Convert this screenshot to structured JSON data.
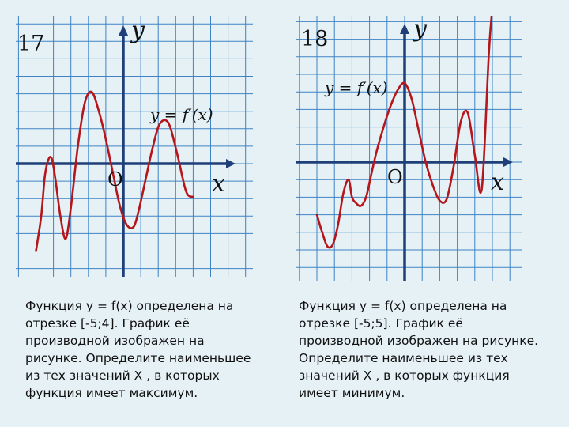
{
  "problems": [
    {
      "number": "17",
      "y_label": "y",
      "x_label": "x",
      "origin_label": "O",
      "function_label": "y = f′(x)",
      "text": "Функция y = f(x) определена на отрезке [-5;4]. График её производной изображен на рисунке. Определите наименьшее из тех значений X , в которых функция имеет максимум.",
      "curve_color": "#b4161b",
      "chart_data": {
        "type": "line",
        "series": [
          {
            "name": "y = f′(x)",
            "x": [
              -5.0,
              -4.7,
              -4.5,
              -4.3,
              -4.1,
              -3.9,
              -3.6,
              -3.3,
              -3.0,
              -2.6,
              -2.2,
              -1.8,
              -1.4,
              -1.0,
              -0.6,
              -0.2,
              0.2,
              0.6,
              0.9,
              1.3,
              1.7,
              2.1,
              2.6,
              3.1,
              3.6,
              4.0
            ],
            "y": [
              -5.0,
              -3.0,
              -0.8,
              0.2,
              0.3,
              -0.8,
              -3.0,
              -4.3,
              -2.5,
              1.0,
              3.5,
              4.1,
              3.0,
              1.4,
              -0.5,
              -2.4,
              -3.5,
              -3.6,
              -2.6,
              -0.8,
              1.0,
              2.3,
              2.3,
              0.5,
              -1.6,
              -1.9
            ]
          }
        ]
      }
    },
    {
      "number": "18",
      "y_label": "y",
      "x_label": "x",
      "origin_label": "O",
      "function_label": "y = f′(x)",
      "text": "Функция y = f(x) определена на отрезке [-5;5]. График её производной изображен на рисунке. Определите наименьшее из тех значений X , в которых функция имеет минимум.",
      "curve_color": "#b4161b",
      "chart_data": {
        "type": "line",
        "series": [
          {
            "name": "y = f′(x)",
            "x": [
              -5.0,
              -4.7,
              -4.4,
              -4.1,
              -3.8,
              -3.5,
              -3.2,
              -3.0,
              -2.8,
              -2.5,
              -2.2,
              -1.9,
              -1.6,
              -1.2,
              -0.8,
              -0.4,
              0.0,
              0.4,
              0.8,
              1.2,
              1.6,
              2.0,
              2.4,
              2.8,
              3.2,
              3.6,
              4.0,
              4.4,
              4.8,
              5.0
            ],
            "y": [
              -3.0,
              -4.0,
              -4.8,
              -4.7,
              -3.6,
              -1.8,
              -1.0,
              -2.0,
              -2.3,
              -2.5,
              -2.0,
              -0.7,
              0.6,
              2.0,
              3.2,
              4.1,
              4.5,
              3.6,
              1.8,
              0.0,
              -1.3,
              -2.2,
              -2.1,
              -0.2,
              2.3,
              2.8,
              0.4,
              -1.5,
              6.2,
              8.8
            ]
          }
        ]
      }
    }
  ]
}
